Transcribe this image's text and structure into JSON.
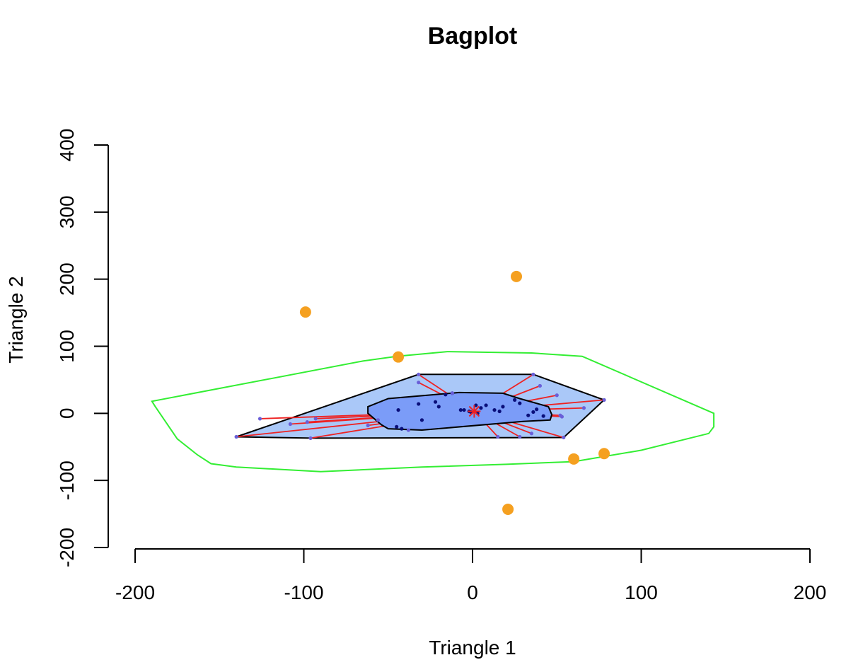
{
  "chart_data": {
    "type": "scatter",
    "title": "Bagplot",
    "xlabel": "Triangle 1",
    "ylabel": "Triangle 2",
    "xlim": [
      -200,
      200
    ],
    "ylim": [
      -200,
      400
    ],
    "xticks": [
      -200,
      -100,
      0,
      100,
      200
    ],
    "yticks": [
      -200,
      -100,
      0,
      100,
      200,
      300,
      400
    ],
    "grid": false,
    "colors": {
      "bag_fill": "#7b9cf8",
      "loop_fill": "#aac8f8",
      "fence_line": "#33ee33",
      "whisker_line": "#ee2222",
      "outlier": "#f5a020",
      "point": "#0a0f7a",
      "loop_point": "#6a5fd8",
      "center": "#ee2222"
    },
    "center": [
      1,
      3
    ],
    "fence": [
      [
        -190,
        18
      ],
      [
        -188,
        10
      ],
      [
        -175,
        -38
      ],
      [
        -163,
        -62
      ],
      [
        -155,
        -75
      ],
      [
        -140,
        -80
      ],
      [
        -90,
        -87
      ],
      [
        -30,
        -80
      ],
      [
        20,
        -76
      ],
      [
        60,
        -72
      ],
      [
        100,
        -55
      ],
      [
        140,
        -30
      ],
      [
        143,
        -20
      ],
      [
        143,
        0
      ],
      [
        65,
        85
      ],
      [
        35,
        90
      ],
      [
        -15,
        92
      ],
      [
        -45,
        85
      ],
      [
        -65,
        78
      ]
    ],
    "loop": [
      [
        -140,
        -35
      ],
      [
        -32,
        58
      ],
      [
        36,
        58
      ],
      [
        78,
        20
      ],
      [
        54,
        -36
      ],
      [
        -95,
        -37
      ]
    ],
    "bag": [
      [
        -62,
        10
      ],
      [
        -50,
        22
      ],
      [
        -8,
        31
      ],
      [
        18,
        30
      ],
      [
        28,
        22
      ],
      [
        45,
        10
      ],
      [
        47,
        -2
      ],
      [
        46,
        -10
      ],
      [
        30,
        -12
      ],
      [
        -30,
        -25
      ],
      [
        -50,
        -23
      ],
      [
        -54,
        -17
      ],
      [
        -62,
        0
      ]
    ],
    "bag_points": [
      [
        -44,
        5
      ],
      [
        -32,
        14
      ],
      [
        -22,
        17
      ],
      [
        -16,
        28
      ],
      [
        -12,
        30
      ],
      [
        -7,
        5
      ],
      [
        -5,
        5
      ],
      [
        -2,
        3
      ],
      [
        2,
        12
      ],
      [
        5,
        8
      ],
      [
        8,
        12
      ],
      [
        13,
        5
      ],
      [
        16,
        3
      ],
      [
        18,
        10
      ],
      [
        25,
        20
      ],
      [
        28,
        15
      ],
      [
        33,
        -3
      ],
      [
        36,
        2
      ],
      [
        38,
        6
      ],
      [
        42,
        -4
      ],
      [
        -30,
        -10
      ],
      [
        -20,
        10
      ],
      [
        -45,
        -20
      ],
      [
        -42,
        -23
      ],
      [
        3,
        0
      ],
      [
        -1,
        2
      ]
    ],
    "loop_points": [
      [
        -126,
        -8
      ],
      [
        -108,
        -16
      ],
      [
        -98,
        -13
      ],
      [
        -93,
        -8
      ],
      [
        -96,
        -37
      ],
      [
        -140,
        -35
      ],
      [
        -32,
        58
      ],
      [
        -32,
        46
      ],
      [
        -12,
        30
      ],
      [
        36,
        58
      ],
      [
        40,
        41
      ],
      [
        50,
        27
      ],
      [
        66,
        8
      ],
      [
        78,
        20
      ],
      [
        52,
        -3
      ],
      [
        53,
        -5
      ],
      [
        54,
        -36
      ],
      [
        35,
        -30
      ],
      [
        28,
        -35
      ],
      [
        15,
        -35
      ],
      [
        -38,
        -25
      ],
      [
        -56,
        -10
      ],
      [
        -62,
        -18
      ]
    ],
    "outliers": [
      [
        -99,
        151
      ],
      [
        -44,
        84
      ],
      [
        26,
        204
      ],
      [
        60,
        -68
      ],
      [
        78,
        -60
      ],
      [
        21,
        -143
      ]
    ]
  }
}
